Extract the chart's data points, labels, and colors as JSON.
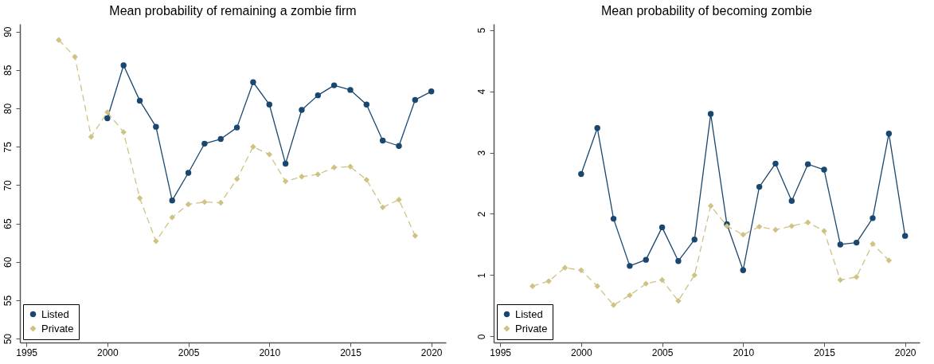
{
  "chart_data": [
    {
      "type": "line",
      "title": "Mean probability of remaining a zombie firm",
      "xlim": [
        1994.6,
        2020.9
      ],
      "xticks": [
        1995,
        2000,
        2005,
        2010,
        2015,
        2020
      ],
      "ylim": [
        49.5,
        91
      ],
      "yticks": [
        50,
        55,
        60,
        65,
        70,
        75,
        80,
        85,
        90
      ],
      "legend": "bottom left",
      "grid": false,
      "series": [
        {
          "name": "Listed",
          "color": "#1a476f",
          "marker": "circle",
          "line_style": "solid",
          "x": [
            2000,
            2001,
            2002,
            2003,
            2004,
            2005,
            2006,
            2007,
            2008,
            2009,
            2010,
            2011,
            2012,
            2013,
            2014,
            2015,
            2016,
            2017,
            2018,
            2019,
            2020
          ],
          "values": [
            78.7,
            85.6,
            81.0,
            77.6,
            68.0,
            71.6,
            75.4,
            76.0,
            77.5,
            83.4,
            80.5,
            72.8,
            79.8,
            81.7,
            83.0,
            82.4,
            80.5,
            75.8,
            75.1,
            81.1,
            82.2
          ]
        },
        {
          "name": "Private",
          "color": "#cfc283",
          "marker": "diamond",
          "line_style": "dashed",
          "x": [
            1997,
            1998,
            1999,
            2000,
            2001,
            2002,
            2003,
            2004,
            2005,
            2006,
            2007,
            2008,
            2009,
            2010,
            2011,
            2012,
            2013,
            2014,
            2015,
            2016,
            2017,
            2018,
            2019
          ],
          "values": [
            88.9,
            86.7,
            76.3,
            79.5,
            76.9,
            68.3,
            62.7,
            65.8,
            67.5,
            67.8,
            67.7,
            70.8,
            75.0,
            74.0,
            70.5,
            71.1,
            71.4,
            72.3,
            72.4,
            70.7,
            67.1,
            68.1,
            63.4
          ]
        }
      ]
    },
    {
      "type": "line",
      "title": "Mean probability of becoming zombie",
      "xlim": [
        1994.6,
        2020.9
      ],
      "xticks": [
        1995,
        2000,
        2005,
        2010,
        2015,
        2020
      ],
      "ylim": [
        -0.1,
        5.1
      ],
      "yticks": [
        0,
        1,
        2,
        3,
        4,
        5
      ],
      "legend": "bottom left",
      "grid": false,
      "series": [
        {
          "name": "Listed",
          "color": "#1a476f",
          "marker": "circle",
          "line_style": "solid",
          "x": [
            2000,
            2001,
            2002,
            2003,
            2004,
            2005,
            2006,
            2007,
            2008,
            2009,
            2010,
            2011,
            2012,
            2013,
            2014,
            2015,
            2016,
            2017,
            2018,
            2019,
            2020
          ],
          "values": [
            2.65,
            3.4,
            1.92,
            1.15,
            1.25,
            1.78,
            1.23,
            1.58,
            3.63,
            1.83,
            1.08,
            2.44,
            2.82,
            2.21,
            2.81,
            2.72,
            1.5,
            1.53,
            1.93,
            3.31,
            1.64
          ]
        },
        {
          "name": "Private",
          "color": "#cfc283",
          "marker": "diamond",
          "line_style": "dashed",
          "x": [
            1997,
            1998,
            1999,
            2000,
            2001,
            2002,
            2003,
            2004,
            2005,
            2006,
            2007,
            2008,
            2009,
            2010,
            2011,
            2012,
            2013,
            2014,
            2015,
            2016,
            2017,
            2018,
            2019
          ],
          "values": [
            0.82,
            0.9,
            1.12,
            1.08,
            0.82,
            0.51,
            0.67,
            0.86,
            0.92,
            0.58,
            1.0,
            2.13,
            1.8,
            1.66,
            1.79,
            1.74,
            1.8,
            1.86,
            1.72,
            0.92,
            0.97,
            1.51,
            1.24
          ]
        }
      ]
    }
  ]
}
